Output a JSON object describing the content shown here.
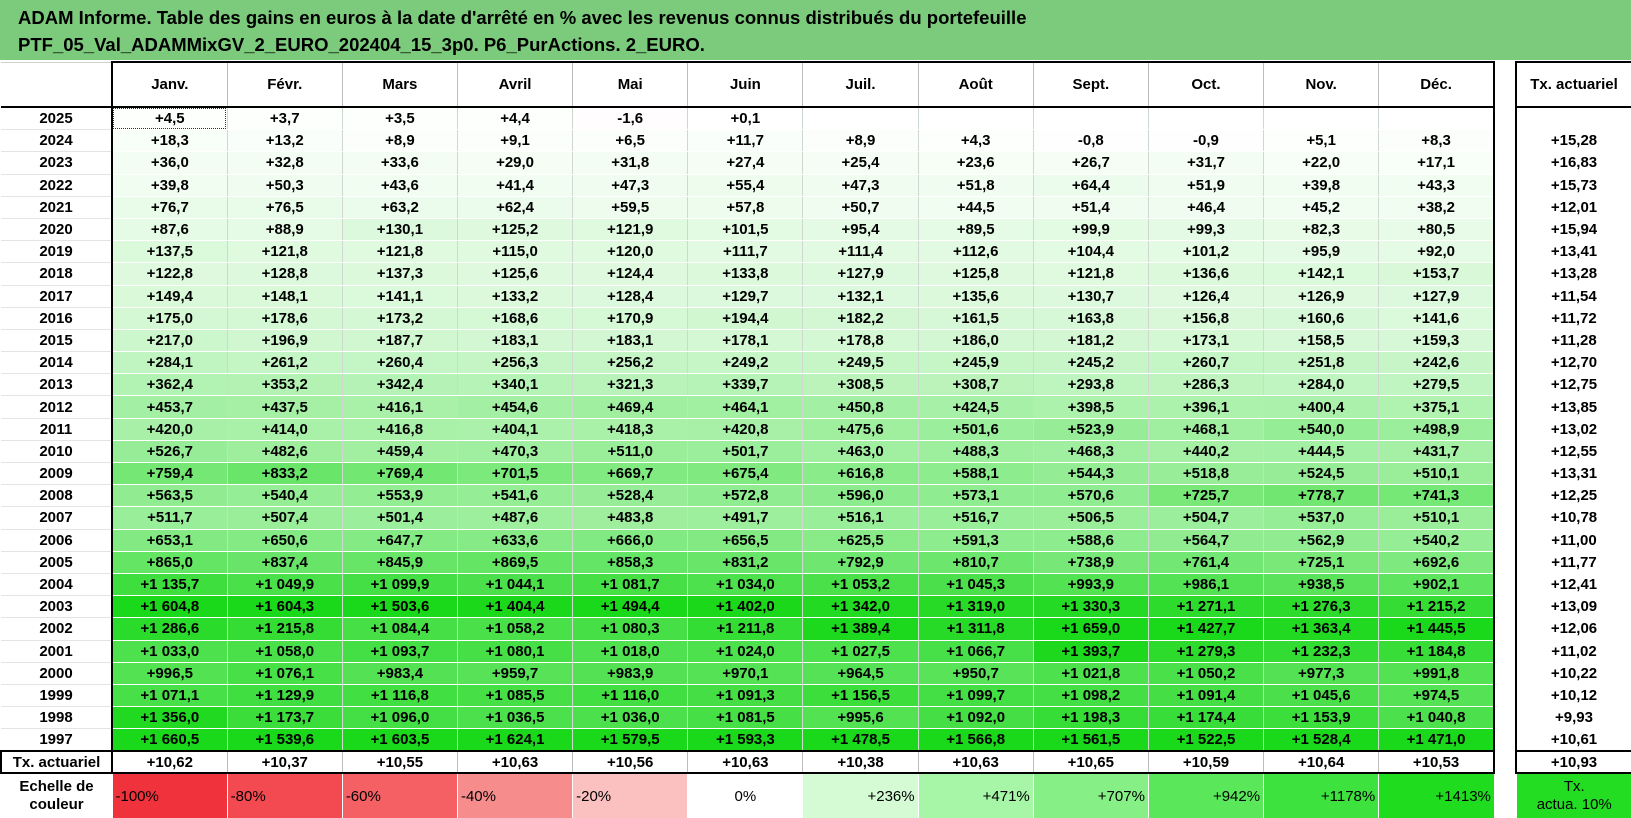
{
  "title": {
    "line1": "ADAM Informe. Table des gains en euros à la date d'arrêté en % avec les revenus connus distribués du portefeuille",
    "line2": "PTF_05_Val_ADAMMixGV_2_EURO_202404_15_3p0. P6_PurActions. 2_EURO."
  },
  "months": [
    "Janv.",
    "Févr.",
    "Mars",
    "Avril",
    "Mai",
    "Juin",
    "Juil.",
    "Août",
    "Sept.",
    "Oct.",
    "Nov.",
    "Déc."
  ],
  "side_header": "Tx. actuariel",
  "rows": [
    {
      "year": "2025",
      "values": [
        "+4,5",
        "+3,7",
        "+3,5",
        "+4,4",
        "-1,6",
        "+0,1",
        "",
        "",
        "",
        "",
        "",
        ""
      ],
      "tx": ""
    },
    {
      "year": "2024",
      "values": [
        "+18,3",
        "+13,2",
        "+8,9",
        "+9,1",
        "+6,5",
        "+11,7",
        "+8,9",
        "+4,3",
        "-0,8",
        "-0,9",
        "+5,1",
        "+8,3"
      ],
      "tx": "+15,28"
    },
    {
      "year": "2023",
      "values": [
        "+36,0",
        "+32,8",
        "+33,6",
        "+29,0",
        "+31,8",
        "+27,4",
        "+25,4",
        "+23,6",
        "+26,7",
        "+31,7",
        "+22,0",
        "+17,1"
      ],
      "tx": "+16,83"
    },
    {
      "year": "2022",
      "values": [
        "+39,8",
        "+50,3",
        "+43,6",
        "+41,4",
        "+47,3",
        "+55,4",
        "+47,3",
        "+51,8",
        "+64,4",
        "+51,9",
        "+39,8",
        "+43,3"
      ],
      "tx": "+15,73"
    },
    {
      "year": "2021",
      "values": [
        "+76,7",
        "+76,5",
        "+63,2",
        "+62,4",
        "+59,5",
        "+57,8",
        "+50,7",
        "+44,5",
        "+51,4",
        "+46,4",
        "+45,2",
        "+38,2"
      ],
      "tx": "+12,01"
    },
    {
      "year": "2020",
      "values": [
        "+87,6",
        "+88,9",
        "+130,1",
        "+125,2",
        "+121,9",
        "+101,5",
        "+95,4",
        "+89,5",
        "+99,9",
        "+99,3",
        "+82,3",
        "+80,5"
      ],
      "tx": "+15,94"
    },
    {
      "year": "2019",
      "values": [
        "+137,5",
        "+121,8",
        "+121,8",
        "+115,0",
        "+120,0",
        "+111,7",
        "+111,4",
        "+112,6",
        "+104,4",
        "+101,2",
        "+95,9",
        "+92,0"
      ],
      "tx": "+13,41"
    },
    {
      "year": "2018",
      "values": [
        "+122,8",
        "+128,8",
        "+137,3",
        "+125,6",
        "+124,4",
        "+133,8",
        "+127,9",
        "+125,8",
        "+121,8",
        "+136,6",
        "+142,1",
        "+153,7"
      ],
      "tx": "+13,28"
    },
    {
      "year": "2017",
      "values": [
        "+149,4",
        "+148,1",
        "+141,1",
        "+133,2",
        "+128,4",
        "+129,7",
        "+132,1",
        "+135,6",
        "+130,7",
        "+126,4",
        "+126,9",
        "+127,9"
      ],
      "tx": "+11,54"
    },
    {
      "year": "2016",
      "values": [
        "+175,0",
        "+178,6",
        "+173,2",
        "+168,6",
        "+170,9",
        "+194,4",
        "+182,2",
        "+161,5",
        "+163,8",
        "+156,8",
        "+160,6",
        "+141,6"
      ],
      "tx": "+11,72"
    },
    {
      "year": "2015",
      "values": [
        "+217,0",
        "+196,9",
        "+187,7",
        "+183,1",
        "+183,1",
        "+178,1",
        "+178,8",
        "+186,0",
        "+181,2",
        "+173,1",
        "+158,5",
        "+159,3"
      ],
      "tx": "+11,28"
    },
    {
      "year": "2014",
      "values": [
        "+284,1",
        "+261,2",
        "+260,4",
        "+256,3",
        "+256,2",
        "+249,2",
        "+249,5",
        "+245,9",
        "+245,2",
        "+260,7",
        "+251,8",
        "+242,6"
      ],
      "tx": "+12,70"
    },
    {
      "year": "2013",
      "values": [
        "+362,4",
        "+353,2",
        "+342,4",
        "+340,1",
        "+321,3",
        "+339,7",
        "+308,5",
        "+308,7",
        "+293,8",
        "+286,3",
        "+284,0",
        "+279,5"
      ],
      "tx": "+12,75"
    },
    {
      "year": "2012",
      "values": [
        "+453,7",
        "+437,5",
        "+416,1",
        "+454,6",
        "+469,4",
        "+464,1",
        "+450,8",
        "+424,5",
        "+398,5",
        "+396,1",
        "+400,4",
        "+375,1"
      ],
      "tx": "+13,85"
    },
    {
      "year": "2011",
      "values": [
        "+420,0",
        "+414,0",
        "+416,8",
        "+404,1",
        "+418,3",
        "+420,8",
        "+475,6",
        "+501,6",
        "+523,9",
        "+468,1",
        "+540,0",
        "+498,9"
      ],
      "tx": "+13,02"
    },
    {
      "year": "2010",
      "values": [
        "+526,7",
        "+482,6",
        "+459,4",
        "+470,3",
        "+511,0",
        "+501,7",
        "+463,0",
        "+488,3",
        "+468,3",
        "+440,2",
        "+444,5",
        "+431,7"
      ],
      "tx": "+12,55"
    },
    {
      "year": "2009",
      "values": [
        "+759,4",
        "+833,2",
        "+769,4",
        "+701,5",
        "+669,7",
        "+675,4",
        "+616,8",
        "+588,1",
        "+544,3",
        "+518,8",
        "+524,5",
        "+510,1"
      ],
      "tx": "+13,31"
    },
    {
      "year": "2008",
      "values": [
        "+563,5",
        "+540,4",
        "+553,9",
        "+541,6",
        "+528,4",
        "+572,8",
        "+596,0",
        "+573,1",
        "+570,6",
        "+725,7",
        "+778,7",
        "+741,3"
      ],
      "tx": "+12,25"
    },
    {
      "year": "2007",
      "values": [
        "+511,7",
        "+507,4",
        "+501,4",
        "+487,6",
        "+483,8",
        "+491,7",
        "+516,1",
        "+516,7",
        "+506,5",
        "+504,7",
        "+537,0",
        "+510,1"
      ],
      "tx": "+10,78"
    },
    {
      "year": "2006",
      "values": [
        "+653,1",
        "+650,6",
        "+647,7",
        "+633,6",
        "+666,0",
        "+656,5",
        "+625,5",
        "+591,3",
        "+588,6",
        "+564,7",
        "+562,9",
        "+540,2"
      ],
      "tx": "+11,00"
    },
    {
      "year": "2005",
      "values": [
        "+865,0",
        "+837,4",
        "+845,9",
        "+869,5",
        "+858,3",
        "+831,2",
        "+792,9",
        "+810,7",
        "+738,9",
        "+761,4",
        "+725,1",
        "+692,6"
      ],
      "tx": "+11,77"
    },
    {
      "year": "2004",
      "values": [
        "+1 135,7",
        "+1 049,9",
        "+1 099,9",
        "+1 044,1",
        "+1 081,7",
        "+1 034,0",
        "+1 053,2",
        "+1 045,3",
        "+993,9",
        "+986,1",
        "+938,5",
        "+902,1"
      ],
      "tx": "+12,41"
    },
    {
      "year": "2003",
      "values": [
        "+1 604,8",
        "+1 604,3",
        "+1 503,6",
        "+1 404,4",
        "+1 494,4",
        "+1 402,0",
        "+1 342,0",
        "+1 319,0",
        "+1 330,3",
        "+1 271,1",
        "+1 276,3",
        "+1 215,2"
      ],
      "tx": "+13,09"
    },
    {
      "year": "2002",
      "values": [
        "+1 286,6",
        "+1 215,8",
        "+1 084,4",
        "+1 058,2",
        "+1 080,3",
        "+1 211,8",
        "+1 389,4",
        "+1 311,8",
        "+1 659,0",
        "+1 427,7",
        "+1 363,4",
        "+1 445,5"
      ],
      "tx": "+12,06"
    },
    {
      "year": "2001",
      "values": [
        "+1 033,0",
        "+1 058,0",
        "+1 093,7",
        "+1 080,1",
        "+1 018,0",
        "+1 024,0",
        "+1 027,5",
        "+1 066,7",
        "+1 393,7",
        "+1 279,3",
        "+1 232,3",
        "+1 184,8"
      ],
      "tx": "+11,02"
    },
    {
      "year": "2000",
      "values": [
        "+996,5",
        "+1 076,1",
        "+983,4",
        "+959,7",
        "+983,9",
        "+970,1",
        "+964,5",
        "+950,7",
        "+1 021,8",
        "+1 050,2",
        "+977,3",
        "+991,8"
      ],
      "tx": "+10,22"
    },
    {
      "year": "1999",
      "values": [
        "+1 071,1",
        "+1 129,9",
        "+1 116,8",
        "+1 085,5",
        "+1 116,0",
        "+1 091,3",
        "+1 156,5",
        "+1 099,7",
        "+1 098,2",
        "+1 091,4",
        "+1 045,6",
        "+974,5"
      ],
      "tx": "+10,12"
    },
    {
      "year": "1998",
      "values": [
        "+1 356,0",
        "+1 173,7",
        "+1 096,0",
        "+1 036,5",
        "+1 036,0",
        "+1 081,5",
        "+995,6",
        "+1 092,0",
        "+1 198,3",
        "+1 174,4",
        "+1 153,9",
        "+1 040,8"
      ],
      "tx": "+9,93"
    },
    {
      "year": "1997",
      "values": [
        "+1 660,5",
        "+1 539,6",
        "+1 603,5",
        "+1 624,1",
        "+1 579,5",
        "+1 593,3",
        "+1 478,5",
        "+1 566,8",
        "+1 561,5",
        "+1 522,5",
        "+1 528,4",
        "+1 471,0"
      ],
      "tx": "+10,61"
    }
  ],
  "tx_row": {
    "label": "Tx. actuariel",
    "values": [
      "+10,62",
      "+10,37",
      "+10,55",
      "+10,63",
      "+10,56",
      "+10,63",
      "+10,38",
      "+10,63",
      "+10,65",
      "+10,59",
      "+10,64",
      "+10,53"
    ],
    "total": "+10,93"
  },
  "scale": {
    "label_line1": "Echelle de",
    "label_line2": "couleur",
    "steps": [
      {
        "text": "-100%",
        "color": "#f0323c"
      },
      {
        "text": "-80%",
        "color": "#f24a50"
      },
      {
        "text": "-60%",
        "color": "#f46064"
      },
      {
        "text": "-40%",
        "color": "#f78c8c"
      },
      {
        "text": "-20%",
        "color": "#fbc0c0"
      },
      {
        "text": "0%",
        "color": "#ffffff"
      },
      {
        "text": "+236%",
        "color": "#d4fbd4"
      },
      {
        "text": "+471%",
        "color": "#a7f5a7"
      },
      {
        "text": "+707%",
        "color": "#86ef86"
      },
      {
        "text": "+942%",
        "color": "#5ae75a"
      },
      {
        "text": "+1178%",
        "color": "#3ee23e"
      },
      {
        "text": "+1413%",
        "color": "#1fdc1f"
      }
    ],
    "side_line1": "Tx.",
    "side_line2": "actua. 10%"
  },
  "colors": {
    "banner": "#7ccb7c",
    "max_green": "#1ad81a",
    "min_red": "#f0323c"
  },
  "scale_max": 1413,
  "scale_min": -100
}
